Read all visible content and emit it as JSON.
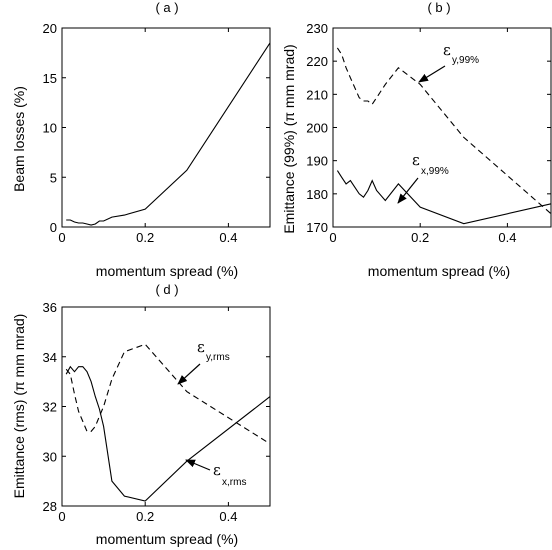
{
  "chart_data": [
    {
      "type": "line",
      "title": "( a )",
      "xlabel": "momentum spread (%)",
      "ylabel": "Beam losses (%)",
      "xlim": [
        0,
        0.5
      ],
      "ylim": [
        0,
        20
      ],
      "xticks": [
        "0",
        "0.2",
        "0.4"
      ],
      "yticks": [
        "0",
        "5",
        "10",
        "15",
        "20"
      ],
      "series": [
        {
          "style": "solid",
          "x": [
            0.01,
            0.02,
            0.03,
            0.04,
            0.05,
            0.06,
            0.07,
            0.08,
            0.09,
            0.1,
            0.12,
            0.15,
            0.2,
            0.3,
            0.5
          ],
          "y": [
            0.7,
            0.7,
            0.5,
            0.4,
            0.4,
            0.3,
            0.2,
            0.3,
            0.6,
            0.6,
            1.0,
            1.2,
            1.8,
            5.7,
            18.5
          ]
        }
      ]
    },
    {
      "type": "line",
      "title": "( b )",
      "xlabel": "momentum spread (%)",
      "ylabel": "Emittance (99%) (π mm mrad)",
      "xlim": [
        0,
        0.5
      ],
      "ylim": [
        170,
        230
      ],
      "xticks": [
        "0",
        "0.2",
        "0.4"
      ],
      "yticks": [
        "170",
        "180",
        "190",
        "200",
        "210",
        "220",
        "230"
      ],
      "series": [
        {
          "style": "dashed",
          "x": [
            0.01,
            0.02,
            0.03,
            0.04,
            0.05,
            0.06,
            0.07,
            0.08,
            0.09,
            0.1,
            0.12,
            0.15,
            0.2,
            0.3,
            0.5
          ],
          "y": [
            224,
            222,
            218,
            215,
            212,
            209,
            208,
            208,
            207,
            209,
            213,
            218,
            213,
            197,
            174
          ]
        },
        {
          "style": "solid",
          "x": [
            0.01,
            0.02,
            0.03,
            0.04,
            0.05,
            0.06,
            0.07,
            0.08,
            0.09,
            0.1,
            0.12,
            0.15,
            0.2,
            0.3,
            0.5
          ],
          "y": [
            187,
            185,
            183,
            184,
            182,
            180,
            179,
            181,
            184,
            181,
            178,
            183,
            176,
            171,
            177
          ]
        }
      ],
      "annotations": [
        {
          "main": "ε",
          "sub": "y,99%"
        },
        {
          "main": "ε",
          "sub": "x,99%"
        }
      ]
    },
    {
      "type": "line",
      "title": "( d )",
      "xlabel": "momentum spread (%)",
      "ylabel": "Emittance (rms) (π mm mrad)",
      "xlim": [
        0,
        0.5
      ],
      "ylim": [
        28,
        36
      ],
      "xticks": [
        "0",
        "0.2",
        "0.4"
      ],
      "yticks": [
        "28",
        "30",
        "32",
        "34",
        "36"
      ],
      "series": [
        {
          "style": "dashed",
          "x": [
            0.01,
            0.02,
            0.03,
            0.04,
            0.05,
            0.06,
            0.07,
            0.08,
            0.09,
            0.1,
            0.12,
            0.15,
            0.2,
            0.3,
            0.5
          ],
          "y": [
            33.5,
            33.3,
            32.5,
            31.8,
            31.4,
            31.0,
            31.0,
            31.2,
            31.6,
            32.0,
            33.1,
            34.2,
            34.5,
            32.6,
            30.5
          ]
        },
        {
          "style": "solid",
          "x": [
            0.01,
            0.02,
            0.03,
            0.04,
            0.05,
            0.06,
            0.07,
            0.08,
            0.09,
            0.1,
            0.12,
            0.15,
            0.2,
            0.3,
            0.5
          ],
          "y": [
            33.3,
            33.6,
            33.4,
            33.6,
            33.6,
            33.4,
            33.0,
            32.4,
            31.9,
            31.2,
            29.0,
            28.4,
            28.2,
            29.8,
            32.4
          ]
        }
      ],
      "annotations": [
        {
          "main": "ε",
          "sub": "y,rms"
        },
        {
          "main": "ε",
          "sub": "x,rms"
        }
      ]
    }
  ]
}
